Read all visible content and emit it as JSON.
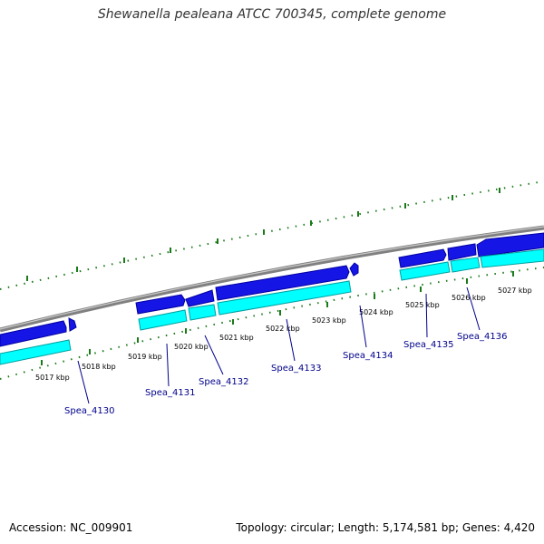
{
  "title": "Shewanella pealeana ATCC 700345, complete genome",
  "footer": {
    "accession": "Accession: NC_009901",
    "stats": "Topology: circular; Length: 5,174,581 bp; Genes: 4,420"
  },
  "colors": {
    "backbone": "#808080",
    "cds_forward": "#1515e6",
    "cds_forward_dark": "#0000a0",
    "cds_lower": "#00ffff",
    "cds_lower_dark": "#00a0a0",
    "tick": "#1a7a1a",
    "gene_label": "#00008b",
    "leader": "#00008b"
  },
  "ruler_labels": [
    "5017 kbp",
    "5018 kbp",
    "5019 kbp",
    "5020 kbp",
    "5021 kbp",
    "5022 kbp",
    "5023 kbp",
    "5024 kbp",
    "5025 kbp",
    "5026 kbp",
    "5027 kbp"
  ],
  "genes": [
    "Spea_4130",
    "Spea_4131",
    "Spea_4132",
    "Spea_4133",
    "Spea_4134",
    "Spea_4135",
    "Spea_4136"
  ]
}
